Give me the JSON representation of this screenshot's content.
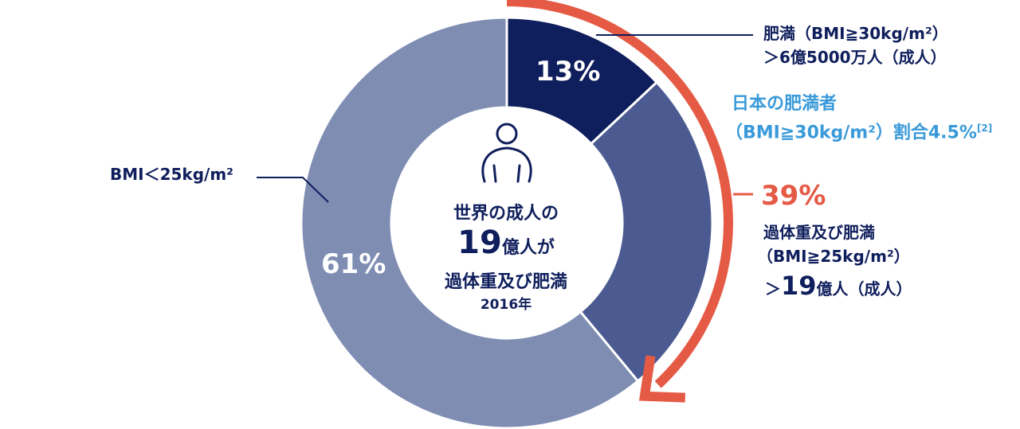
{
  "colors": {
    "obese": "#0f1e5c",
    "overweight": "#4b5b92",
    "normal": "#7f8db3",
    "accent": "#e55a44",
    "japan": "#3a9ad9"
  },
  "chart_data": {
    "type": "pie",
    "variant": "donut",
    "slices": [
      {
        "label": "13%",
        "value": 13
      },
      {
        "label": "",
        "value": 26
      },
      {
        "label": "61%",
        "value": 61
      }
    ]
  },
  "center": {
    "line1": "世界の成人の",
    "num": "19",
    "line2_suffix": "億人が",
    "line3": "過体重及び肥満",
    "year": "2016年",
    "icon": "person-icon"
  },
  "labels": {
    "obese_line1": "肥満（BMI≧30kg/m²）",
    "obese_line2": "＞6億5000万人（成人）",
    "japan_line1": "日本の肥満者",
    "japan_line2": "（BMI≧30kg/m²）割合4.5%",
    "japan_ref": "[2]",
    "over_pct": "39%",
    "over_line1": "過体重及び肥満",
    "over_line2": "（BMI≧25kg/m²）",
    "over_line3_prefix": "＞",
    "over_num": "19",
    "over_line3_suffix": "億人（成人）",
    "normal_label": "BMI＜25kg/m²"
  }
}
